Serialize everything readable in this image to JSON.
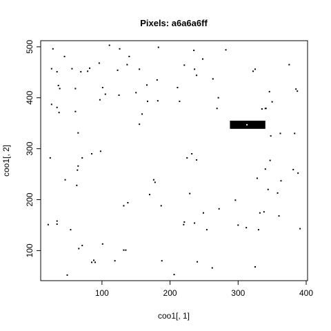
{
  "chart_data": {
    "type": "scatter",
    "title": "Pixels: a6a6a6ff",
    "xlabel": "coo1[, 1]",
    "ylabel": "coo1[, 2]",
    "xlim": [
      10,
      402
    ],
    "ylim": [
      41,
      512
    ],
    "xticks": [
      100,
      200,
      300,
      400
    ],
    "yticks": [
      100,
      200,
      300,
      400,
      500
    ],
    "grid": false,
    "legend": "none",
    "highlight_rect": {
      "x": [
        288,
        340
      ],
      "y": [
        339,
        355
      ],
      "color": "#000000",
      "inner_mark_color": "#ffffff",
      "inner_mark": [
        313,
        347
      ]
    },
    "series": [
      {
        "points": [
          [
            28,
            496
          ],
          [
            126,
            496
          ],
          [
            183,
            499
          ],
          [
            111,
            503
          ],
          [
            282,
            494
          ],
          [
            235,
            493
          ],
          [
            45,
            481
          ],
          [
            82,
            458
          ],
          [
            140,
            481
          ],
          [
            96,
            468
          ],
          [
            56,
            457
          ],
          [
            221,
            464
          ],
          [
            155,
            456
          ],
          [
            248,
            476
          ],
          [
            26,
            457
          ],
          [
            34,
            451
          ],
          [
            69,
            451
          ],
          [
            79,
            452
          ],
          [
            123,
            454
          ],
          [
            181,
            435
          ],
          [
            239,
            444
          ],
          [
            263,
            437
          ],
          [
            211,
            420
          ],
          [
            137,
            465
          ],
          [
            236,
            456
          ],
          [
            325,
            456
          ],
          [
            346,
            412
          ],
          [
            375,
            465
          ],
          [
            322,
            452
          ],
          [
            350,
            392
          ],
          [
            387,
            413
          ],
          [
            385,
            417
          ],
          [
            36,
            424
          ],
          [
            38,
            418
          ],
          [
            61,
            418
          ],
          [
            101,
            420
          ],
          [
            150,
            410
          ],
          [
            105,
            407
          ],
          [
            166,
            425
          ],
          [
            97,
            396
          ],
          [
            125,
            405
          ],
          [
            182,
            394
          ],
          [
            214,
            393
          ],
          [
            271,
            400
          ],
          [
            269,
            379
          ],
          [
            341,
            379
          ],
          [
            340,
            379
          ],
          [
            335,
            378
          ],
          [
            26,
            387
          ],
          [
            34,
            381
          ],
          [
            37,
            371
          ],
          [
            61,
            373
          ],
          [
            167,
            393
          ],
          [
            159,
            368
          ],
          [
            155,
            348
          ],
          [
            362,
            330
          ],
          [
            348,
            325
          ],
          [
            383,
            330
          ],
          [
            65,
            331
          ],
          [
            98,
            295
          ],
          [
            85,
            290
          ],
          [
            71,
            282
          ],
          [
            24,
            282
          ],
          [
            225,
            282
          ],
          [
            232,
            290
          ],
          [
            239,
            278
          ],
          [
            340,
            260
          ],
          [
            328,
            242
          ],
          [
            347,
            277
          ],
          [
            388,
            252
          ],
          [
            381,
            259
          ],
          [
            363,
            237
          ],
          [
            358,
            213
          ],
          [
            344,
            220
          ],
          [
            332,
            174
          ],
          [
            338,
            176
          ],
          [
            312,
            145
          ],
          [
            330,
            141
          ],
          [
            296,
            199
          ],
          [
            176,
            239
          ],
          [
            178,
            234
          ],
          [
            170,
            210
          ],
          [
            187,
            188
          ],
          [
            138,
            194
          ],
          [
            132,
            188
          ],
          [
            65,
            266
          ],
          [
            64,
            258
          ],
          [
            63,
            228
          ],
          [
            46,
            239
          ],
          [
            229,
            212
          ],
          [
            249,
            174
          ],
          [
            272,
            182
          ],
          [
            360,
            168
          ],
          [
            391,
            143
          ],
          [
            21,
            151
          ],
          [
            34,
            158
          ],
          [
            34,
            152
          ],
          [
            54,
            141
          ],
          [
            66,
            104
          ],
          [
            71,
            110
          ],
          [
            101,
            113
          ],
          [
            221,
            156
          ],
          [
            220,
            151
          ],
          [
            236,
            154
          ],
          [
            254,
            141
          ],
          [
            300,
            150
          ],
          [
            325,
            68
          ],
          [
            85,
            77
          ],
          [
            88,
            81
          ],
          [
            90,
            77
          ],
          [
            119,
            80
          ],
          [
            135,
            101
          ],
          [
            132,
            101
          ],
          [
            188,
            80
          ],
          [
            206,
            53
          ],
          [
            240,
            78
          ],
          [
            262,
            66
          ],
          [
            49,
            52
          ]
        ]
      }
    ]
  }
}
